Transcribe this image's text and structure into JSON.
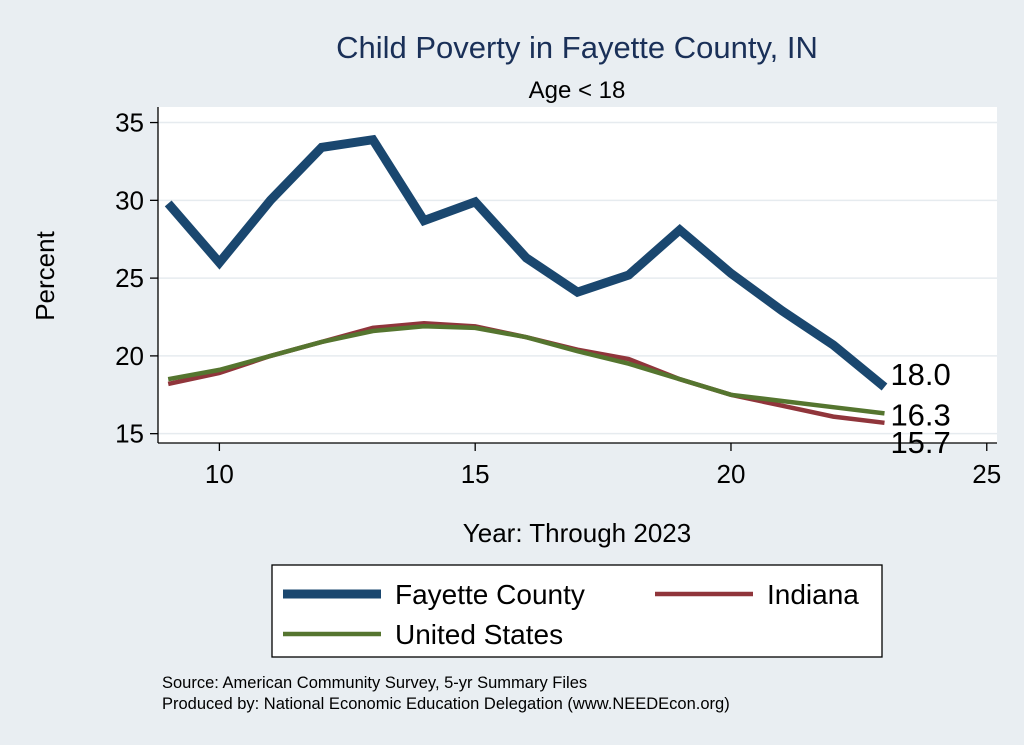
{
  "chart_data": {
    "type": "line",
    "title": "Child Poverty in Fayette County, IN",
    "subtitle": "Age < 18",
    "xlabel": "Year: Through 2023",
    "ylabel": "Percent",
    "xlim": [
      8.8,
      25.2
    ],
    "ylim": [
      14.4,
      36.0
    ],
    "xticks": [
      10,
      15,
      20,
      25
    ],
    "yticks": [
      15,
      20,
      25,
      30,
      35
    ],
    "grid": true,
    "legend_position": "bottom",
    "series": [
      {
        "name": "Fayette County",
        "color": "#1a476f",
        "x": [
          9,
          10,
          11,
          12,
          13,
          14,
          15,
          16,
          17,
          18,
          19,
          20,
          21,
          22,
          23
        ],
        "y": [
          29.8,
          26.0,
          30.0,
          33.4,
          33.9,
          28.7,
          29.9,
          26.3,
          24.1,
          25.2,
          28.1,
          25.3,
          22.9,
          20.7,
          18.0
        ],
        "end_label": "18.0"
      },
      {
        "name": "Indiana",
        "color": "#90353b",
        "x": [
          9,
          10,
          11,
          12,
          13,
          14,
          15,
          16,
          17,
          18,
          19,
          20,
          21,
          22,
          23
        ],
        "y": [
          18.2,
          18.9,
          20.0,
          20.9,
          21.8,
          22.1,
          21.9,
          21.2,
          20.4,
          19.8,
          18.5,
          17.5,
          16.8,
          16.1,
          15.7
        ],
        "end_label": "15.7"
      },
      {
        "name": "United States",
        "color": "#55752f",
        "x": [
          9,
          10,
          11,
          12,
          13,
          14,
          15,
          16,
          17,
          18,
          19,
          20,
          21,
          22,
          23
        ],
        "y": [
          18.5,
          19.1,
          20.0,
          20.9,
          21.6,
          21.9,
          21.8,
          21.2,
          20.3,
          19.5,
          18.5,
          17.5,
          17.1,
          16.7,
          16.3
        ],
        "end_label": "16.3"
      }
    ]
  },
  "source_lines": [
    "Source: American Community Survey, 5-yr Summary Files",
    "Produced by: National Economic Education Delegation (www.NEEDEcon.org)"
  ]
}
